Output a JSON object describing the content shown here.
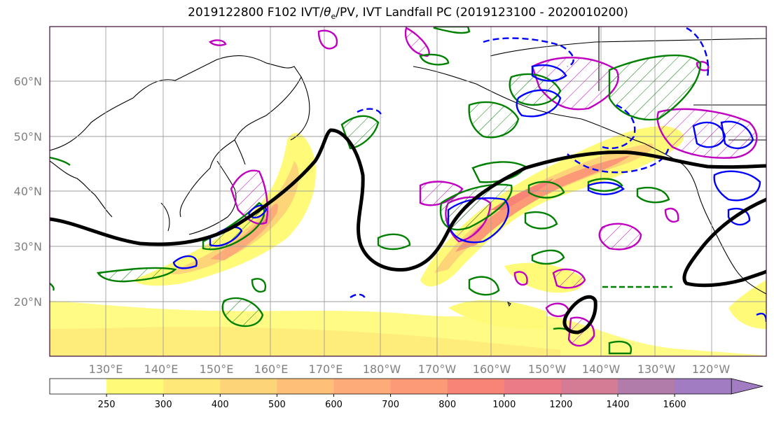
{
  "title": {
    "prefix": "2019122800 F102 IVT/",
    "theta": "θ",
    "theta_sub": "e",
    "suffix": "/PV, IVT Landfall PC (2019123100 - 2020010200)"
  },
  "lat_labels": [
    "60°N",
    "50°N",
    "40°N",
    "30°N",
    "20°N"
  ],
  "lon_labels": [
    "130°E",
    "140°E",
    "150°E",
    "160°E",
    "170°E",
    "180°W",
    "170°W",
    "160°W",
    "150°W",
    "140°W",
    "130°W",
    "120°W"
  ],
  "colorbar": {
    "ticks": [
      "250",
      "300",
      "400",
      "500",
      "600",
      "700",
      "800",
      "1000",
      "1200",
      "1400",
      "1600"
    ],
    "colors": [
      "#ffffff",
      "#fffb78",
      "#fee878",
      "#fed478",
      "#febf78",
      "#fdab78",
      "#fc9a78",
      "#f88478",
      "#eb7b87",
      "#d47c96",
      "#b17ca9",
      "#a17cc2"
    ]
  },
  "colors": {
    "ivt_pc_contour": "#000000",
    "pv_positive": "#008000",
    "pv_negative": "#0000ff",
    "theta_e": "#c000c0",
    "grid": "#9e9e9e",
    "frame": "#3d0a3d"
  }
}
